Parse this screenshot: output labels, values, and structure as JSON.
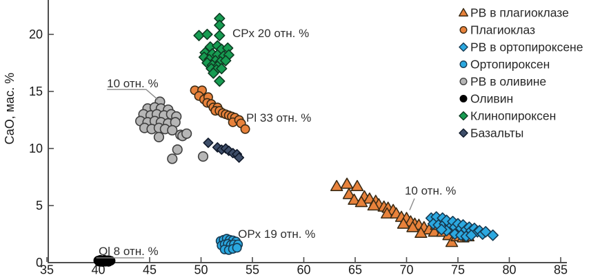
{
  "chart_data": {
    "type": "scatter",
    "title": "",
    "xlabel": "",
    "ylabel": "CaO, мас. %",
    "xlim": [
      35,
      85
    ],
    "ylim": [
      0,
      23
    ],
    "x_ticks": [
      35,
      40,
      45,
      50,
      55,
      60,
      65,
      70,
      75,
      80,
      85
    ],
    "y_ticks": [
      0,
      5,
      10,
      15,
      20
    ],
    "grid": false,
    "legend_position": "top-right",
    "series": [
      {
        "name": "РВ в плагиоклазе",
        "marker": "triangle",
        "fill": "#E8823B",
        "stroke": "#3a2a14",
        "size": 7.5,
        "points": [
          [
            63.2,
            6.7
          ],
          [
            64.2,
            6.9
          ],
          [
            65.2,
            6.7
          ],
          [
            64.4,
            6.0
          ],
          [
            64.9,
            5.5
          ],
          [
            65.9,
            5.8
          ],
          [
            66.4,
            5.6
          ],
          [
            67.0,
            5.4
          ],
          [
            67.3,
            5.1
          ],
          [
            67.8,
            4.9
          ],
          [
            68.2,
            4.8
          ],
          [
            68.7,
            4.6
          ],
          [
            68.1,
            4.3
          ],
          [
            69.0,
            4.3
          ],
          [
            69.5,
            4.0
          ],
          [
            70.0,
            3.9
          ],
          [
            70.4,
            3.6
          ],
          [
            70.8,
            3.4
          ],
          [
            71.2,
            3.3
          ],
          [
            71.7,
            3.1
          ],
          [
            72.2,
            2.9
          ],
          [
            72.7,
            2.7
          ],
          [
            73.5,
            2.7
          ],
          [
            74.1,
            2.4
          ],
          [
            74.4,
            1.8
          ],
          [
            74.9,
            2.3
          ],
          [
            72.9,
            3.3
          ],
          [
            73.7,
            3.0
          ],
          [
            70.6,
            3.1
          ],
          [
            69.7,
            3.4
          ],
          [
            66.8,
            5.0
          ],
          [
            65.6,
            5.3
          ],
          [
            71.4,
            2.6
          ],
          [
            75.5,
            2.2
          ],
          [
            76.0,
            2.3
          ]
        ]
      },
      {
        "name": "Плагиоклаз",
        "marker": "circle",
        "fill": "#E8823B",
        "stroke": "#3a2a14",
        "size": 6.2,
        "points": [
          [
            49.4,
            15.1
          ],
          [
            50.1,
            15.1
          ],
          [
            49.8,
            14.6
          ],
          [
            50.3,
            14.3
          ],
          [
            50.7,
            14.5
          ],
          [
            50.6,
            14.0
          ],
          [
            51.0,
            13.9
          ],
          [
            51.2,
            13.6
          ],
          [
            51.6,
            13.6
          ],
          [
            51.4,
            13.3
          ],
          [
            51.8,
            13.3
          ],
          [
            52.1,
            13.1
          ],
          [
            52.4,
            13.0
          ],
          [
            52.7,
            12.9
          ],
          [
            53.0,
            12.8
          ],
          [
            53.3,
            12.7
          ],
          [
            53.1,
            12.3
          ],
          [
            53.7,
            12.5
          ],
          [
            53.9,
            12.2
          ],
          [
            54.3,
            11.7
          ]
        ]
      },
      {
        "name": "РВ в ортопироксене",
        "marker": "diamond",
        "fill": "#2BA8E0",
        "stroke": "#163a52",
        "size": 7,
        "points": [
          [
            72.4,
            3.9
          ],
          [
            72.9,
            4.0
          ],
          [
            73.5,
            3.9
          ],
          [
            72.6,
            3.4
          ],
          [
            73.1,
            3.3
          ],
          [
            73.7,
            3.4
          ],
          [
            74.2,
            3.3
          ],
          [
            73.9,
            3.7
          ],
          [
            74.5,
            3.6
          ],
          [
            74.7,
            3.1
          ],
          [
            75.0,
            3.4
          ],
          [
            75.3,
            3.0
          ],
          [
            75.5,
            3.3
          ],
          [
            75.8,
            2.9
          ],
          [
            76.1,
            3.1
          ],
          [
            76.3,
            2.8
          ],
          [
            76.6,
            3.0
          ],
          [
            76.9,
            2.7
          ],
          [
            77.1,
            2.8
          ],
          [
            77.4,
            2.5
          ],
          [
            77.7,
            2.7
          ],
          [
            74.7,
            2.5
          ],
          [
            75.3,
            2.4
          ],
          [
            75.8,
            2.3
          ],
          [
            76.3,
            2.4
          ],
          [
            73.9,
            2.8
          ],
          [
            73.4,
            2.9
          ],
          [
            78.4,
            2.4
          ]
        ]
      },
      {
        "name": "Ортопироксен",
        "marker": "circle",
        "fill": "#2BA8E0",
        "stroke": "#163a52",
        "size": 6.2,
        "points": [
          [
            51.9,
            1.9
          ],
          [
            52.2,
            2.0
          ],
          [
            52.5,
            2.1
          ],
          [
            52.8,
            2.0
          ],
          [
            53.1,
            1.95
          ],
          [
            53.4,
            1.85
          ],
          [
            52.0,
            1.5
          ],
          [
            52.3,
            1.6
          ],
          [
            52.6,
            1.65
          ],
          [
            52.9,
            1.55
          ],
          [
            53.2,
            1.6
          ],
          [
            53.6,
            1.6
          ],
          [
            52.3,
            1.15
          ],
          [
            52.7,
            1.1
          ],
          [
            53.1,
            1.2
          ],
          [
            53.5,
            1.3
          ]
        ]
      },
      {
        "name": "РВ в оливине",
        "marker": "circle",
        "fill": "#b6b6b6",
        "stroke": "#3f3f3f",
        "size": 6.8,
        "points": [
          [
            46.0,
            14.1
          ],
          [
            44.8,
            13.5
          ],
          [
            45.5,
            13.6
          ],
          [
            46.1,
            13.5
          ],
          [
            46.8,
            13.4
          ],
          [
            44.4,
            13.0
          ],
          [
            45.1,
            12.9
          ],
          [
            45.7,
            13.0
          ],
          [
            46.4,
            12.9
          ],
          [
            47.1,
            13.0
          ],
          [
            47.6,
            12.8
          ],
          [
            44.1,
            12.4
          ],
          [
            44.8,
            12.3
          ],
          [
            45.5,
            12.4
          ],
          [
            46.1,
            12.3
          ],
          [
            46.8,
            12.2
          ],
          [
            47.5,
            12.3
          ],
          [
            44.5,
            11.8
          ],
          [
            45.2,
            11.7
          ],
          [
            45.9,
            11.8
          ],
          [
            46.5,
            11.7
          ],
          [
            47.2,
            11.6
          ],
          [
            48.0,
            11.2
          ],
          [
            45.9,
            11.0
          ],
          [
            48.2,
            11.1
          ],
          [
            48.6,
            11.3
          ],
          [
            47.7,
            9.9
          ],
          [
            47.2,
            9.1
          ],
          [
            50.2,
            9.3
          ]
        ]
      },
      {
        "name": "Оливин",
        "marker": "circle",
        "fill": "#000000",
        "stroke": "#000000",
        "size": 6.2,
        "points": [
          [
            40.0,
            0.18
          ],
          [
            40.2,
            0.24
          ],
          [
            40.4,
            0.18
          ],
          [
            40.6,
            0.24
          ],
          [
            40.8,
            0.18
          ],
          [
            41.0,
            0.22
          ],
          [
            41.2,
            0.16
          ],
          [
            40.1,
            0.08
          ],
          [
            40.4,
            0.06
          ],
          [
            40.7,
            0.08
          ],
          [
            41.0,
            0.07
          ],
          [
            40.3,
            0.12
          ]
        ]
      },
      {
        "name": "Клинопироксен",
        "marker": "diamond",
        "fill": "#179C52",
        "stroke": "#0e3a22",
        "size": 6.8,
        "points": [
          [
            51.8,
            21.4
          ],
          [
            51.8,
            20.8
          ],
          [
            49.8,
            19.9
          ],
          [
            50.6,
            20.0
          ],
          [
            51.8,
            19.9
          ],
          [
            50.9,
            18.9
          ],
          [
            51.6,
            19.0
          ],
          [
            52.0,
            18.7
          ],
          [
            52.6,
            18.8
          ],
          [
            50.4,
            18.4
          ],
          [
            51.1,
            18.3
          ],
          [
            51.6,
            18.2
          ],
          [
            52.2,
            18.1
          ],
          [
            52.7,
            18.2
          ],
          [
            50.3,
            18.0
          ],
          [
            50.8,
            17.8
          ],
          [
            51.4,
            17.7
          ],
          [
            51.9,
            17.6
          ],
          [
            52.4,
            17.7
          ],
          [
            50.6,
            17.5
          ],
          [
            51.1,
            17.3
          ],
          [
            51.6,
            17.2
          ],
          [
            51.0,
            17.0
          ],
          [
            51.5,
            16.9
          ],
          [
            52.0,
            17.0
          ],
          [
            51.2,
            16.6
          ],
          [
            51.8,
            15.9
          ]
        ]
      },
      {
        "name": "Базальты",
        "marker": "diamond",
        "fill": "#3E4E69",
        "stroke": "#10192a",
        "size": 6.2,
        "points": [
          [
            50.7,
            10.5
          ],
          [
            51.6,
            10.1
          ],
          [
            52.0,
            9.9
          ],
          [
            52.4,
            10.0
          ],
          [
            52.7,
            9.8
          ],
          [
            53.1,
            9.6
          ],
          [
            53.5,
            9.5
          ],
          [
            53.7,
            9.2
          ]
        ]
      }
    ],
    "annotations": [
      {
        "text": "CPx 20 отн. %",
        "x": 53.05,
        "y": 19.75,
        "lines": []
      },
      {
        "text": "10 отн. %",
        "x": 40.85,
        "y": 15.35,
        "lines": [
          [
            [
              40.85,
              15.17
            ],
            [
              44.66,
              15.17
            ],
            [
              45.8,
              14.28
            ]
          ]
        ]
      },
      {
        "text": "Pl 33 отн. %",
        "x": 54.4,
        "y": 12.35,
        "lines": []
      },
      {
        "text": "OPx 19 отн. %",
        "x": 53.6,
        "y": 2.17,
        "lines": []
      },
      {
        "text": "Ol 8 отн. %",
        "x": 40.03,
        "y": 0.66,
        "lines": [
          [
            [
              39.8,
              0.42
            ],
            [
              44.46,
              0.42
            ]
          ]
        ]
      },
      {
        "text": "10 отн. %",
        "x": 69.83,
        "y": 5.96,
        "lines": [
          [
            [
              70.77,
              5.62
            ],
            [
              70.3,
              4.6
            ]
          ]
        ]
      }
    ]
  },
  "colors": {
    "axis": "#4d4d4d",
    "tick_text": "#1a1a1a",
    "legend_text": "#272727",
    "annotation_text": "#2f2f2f",
    "leader_line": "#8a8a8a",
    "background": "#ffffff"
  }
}
